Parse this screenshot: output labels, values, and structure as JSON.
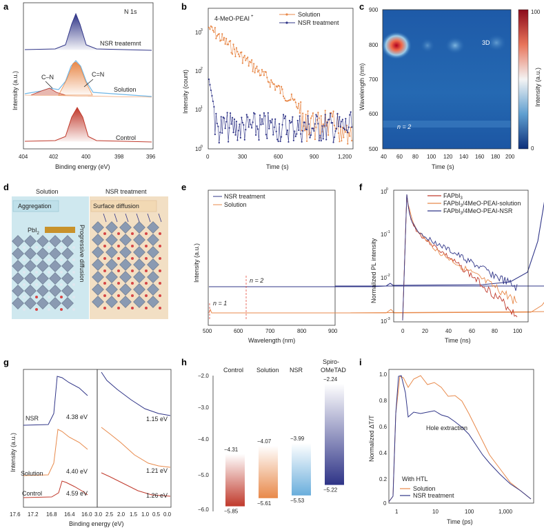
{
  "panels": {
    "a": {
      "letter": "a",
      "title": "N 1s",
      "ylabel": "Intensity (a.u.)",
      "xlabel": "Binding energy (eV)",
      "xticks": [
        "404",
        "402",
        "400",
        "398",
        "396"
      ],
      "curves": [
        "NSR treatemnt",
        "Solution",
        "Control"
      ],
      "peaks": [
        "C–N",
        "C=N"
      ]
    },
    "b": {
      "letter": "b",
      "xlabel": "Time (s)",
      "ylabel": "Intensity (count)",
      "xticks": [
        "0",
        "300",
        "600",
        "900",
        "1,200"
      ],
      "yticks": [
        "10",
        "10",
        "10",
        "10"
      ],
      "yexp": [
        "0",
        "1",
        "2",
        "3"
      ],
      "legend": [
        "Solution",
        "NSR treatment"
      ],
      "label": "4-MeO-PEAI",
      "colors": {
        "solution": "#e8894a",
        "nsr": "#2f3487"
      }
    },
    "c": {
      "letter": "c",
      "xlabel": "Time (s)",
      "ylabel": "Wavelength (nm)",
      "xticks": [
        "40",
        "60",
        "80",
        "100",
        "120",
        "140",
        "160",
        "180",
        "200"
      ],
      "yticks": [
        "900",
        "800",
        "700",
        "600",
        "500"
      ],
      "labels": {
        "three_d": "3D",
        "n2": "n = 2"
      },
      "colorbar": {
        "label": "Intensity (a.u.)",
        "max": "100",
        "min": "0"
      }
    },
    "d": {
      "letter": "d",
      "left_title": "Solution",
      "right_title": "NSR treatment",
      "aggregation": "Aggregation",
      "surface": "Surface diffusion",
      "pbi": "PbI",
      "pbi_sub": "2",
      "progressive": "Progressive diffusion"
    },
    "e": {
      "letter": "e",
      "xlabel": "Wavelength (nm)",
      "ylabel": "Intensity (a.u.)",
      "xticks": [
        "500",
        "600",
        "700",
        "800",
        "900"
      ],
      "legend": [
        "NSR treatment",
        "Solution"
      ],
      "n2": "n = 2",
      "n1": "n = 1"
    },
    "f": {
      "letter": "f",
      "xlabel": "Time (ns)",
      "ylabel": "Normalized PL intensity",
      "xticks": [
        "0",
        "20",
        "40",
        "60",
        "80",
        "100"
      ],
      "yticks": [
        "10",
        "10",
        "10",
        "10"
      ],
      "yexp": [
        "0",
        "−1",
        "−2",
        "−3"
      ],
      "legend": [
        "FAPbI",
        "FAPbI",
        "FAPbI"
      ],
      "legend_suffix": [
        "",
        "/4MeO-PEAI-solution",
        "/4MeO-PEAI-NSR"
      ]
    },
    "g": {
      "letter": "g",
      "xlabel": "Binding energy (eV)",
      "ylabel": "Intensity (a.u.)",
      "xticks_left": [
        "17.6",
        "17.2",
        "16.8",
        "16.4",
        "16.0"
      ],
      "xticks_right": [
        "3.0",
        "2.5",
        "2.0",
        "1.5",
        "1.0",
        "0.5",
        "0.0"
      ],
      "rows": [
        {
          "name": "NSR",
          "left": "4.38 eV",
          "right": "1.15 eV"
        },
        {
          "name": "Solution",
          "left": "4.40 eV",
          "right": "1.21 eV"
        },
        {
          "name": "Control",
          "left": "4.59 eV",
          "right": "1.26 eV"
        }
      ]
    },
    "h": {
      "letter": "h",
      "yticks": [
        "−2.0",
        "−3.0",
        "−4.0",
        "−5.0",
        "−6.0"
      ],
      "bars": [
        {
          "name": "Control",
          "top": "−4.31",
          "bottom": "−5.85",
          "top_v": -4.31,
          "bot_v": -5.85,
          "color": "#c0392b"
        },
        {
          "name": "Solution",
          "top": "−4.07",
          "bottom": "−5.61",
          "top_v": -4.07,
          "bot_v": -5.61,
          "color": "#e8894a"
        },
        {
          "name": "NSR",
          "top": "−3.99",
          "bottom": "−5.53",
          "top_v": -3.99,
          "bot_v": -5.53,
          "color": "#6aaedc"
        },
        {
          "name": "Spiro-",
          "name2": "OMeTAD",
          "top": "−2.24",
          "bottom": "−5.22",
          "top_v": -2.24,
          "bot_v": -5.22,
          "color": "#2f3487"
        }
      ]
    },
    "i": {
      "letter": "i",
      "xlabel": "Time (ps)",
      "ylabel": "Normalized ΔT/T",
      "xticks": [
        "1",
        "10",
        "100",
        "1,000"
      ],
      "yticks": [
        "1.0",
        "0.8",
        "0.6",
        "0.4",
        "0.2",
        "0"
      ],
      "annotation": "Hole extraction",
      "legend_title": "With HTL",
      "legend": [
        "Solution",
        "NSR treatment"
      ]
    }
  }
}
